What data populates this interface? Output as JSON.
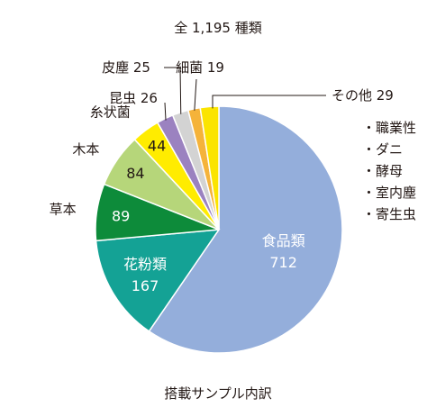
{
  "chart_data": {
    "type": "pie",
    "title": "全 1,195 種類",
    "caption": "搭載サンプル内訳",
    "slices": [
      {
        "name": "食品類",
        "value": 712,
        "color": "#94aedb"
      },
      {
        "name": "花粉類",
        "value": 167,
        "color": "#14a295"
      },
      {
        "name": "草本",
        "value": 89,
        "color": "#0d8b3a"
      },
      {
        "name": "木本",
        "value": 84,
        "color": "#b6d67a"
      },
      {
        "name": "糸状菌",
        "value": 44,
        "color": "#ffec00"
      },
      {
        "name": "昆虫",
        "value": 26,
        "color": "#9b82c0"
      },
      {
        "name": "皮塵",
        "value": 25,
        "color": "#d3d3d3"
      },
      {
        "name": "細菌",
        "value": 19,
        "color": "#f5b33a"
      },
      {
        "name": "その他",
        "value": 29,
        "color": "#fbe400"
      }
    ],
    "other_breakdown": [
      "職業性",
      "ダニ",
      "酵母",
      "室内塵",
      "寄生虫"
    ]
  }
}
